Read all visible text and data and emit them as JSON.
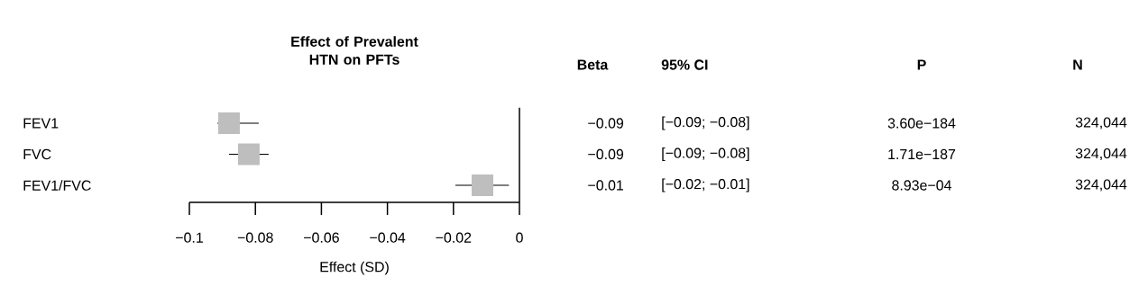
{
  "chart_data": {
    "type": "scatter",
    "orientation": "horizontal",
    "title": "Effect of Prevalent HTN on PFTs",
    "xlabel": "Effect (SD)",
    "categories": [
      "FEV1",
      "FVC",
      "FEV1/FVC"
    ],
    "series": [
      {
        "color": "#bebebe",
        "values": [
          -0.088,
          -0.082,
          -0.0112
        ],
        "errors": [
          [
            -0.0915,
            -0.079
          ],
          [
            -0.088,
            -0.076
          ],
          [
            -0.0194,
            -0.0032
          ]
        ]
      }
    ],
    "marker": "square",
    "xlim": [
      -0.1,
      0
    ],
    "xticks": [
      {
        "value": -0.1,
        "label": "−0.1"
      },
      {
        "value": -0.08,
        "label": "−0.08"
      },
      {
        "value": -0.06,
        "label": "−0.06"
      },
      {
        "value": -0.04,
        "label": "−0.04"
      },
      {
        "value": -0.02,
        "label": "−0.02"
      },
      0
    ],
    "ref_lines": [
      {
        "axis": "x",
        "value": 0
      }
    ],
    "annotations": [
      "Beta",
      "95% CI",
      "P",
      "N",
      "−0.09",
      "[−0.09; −0.08]",
      "3.60e−184",
      "324,044",
      "−0.09",
      "[−0.09; −0.08]",
      "1.71e−187",
      "324,044",
      "−0.01",
      "[−0.02; −0.01]",
      "8.93e−04",
      "324,044"
    ]
  }
}
